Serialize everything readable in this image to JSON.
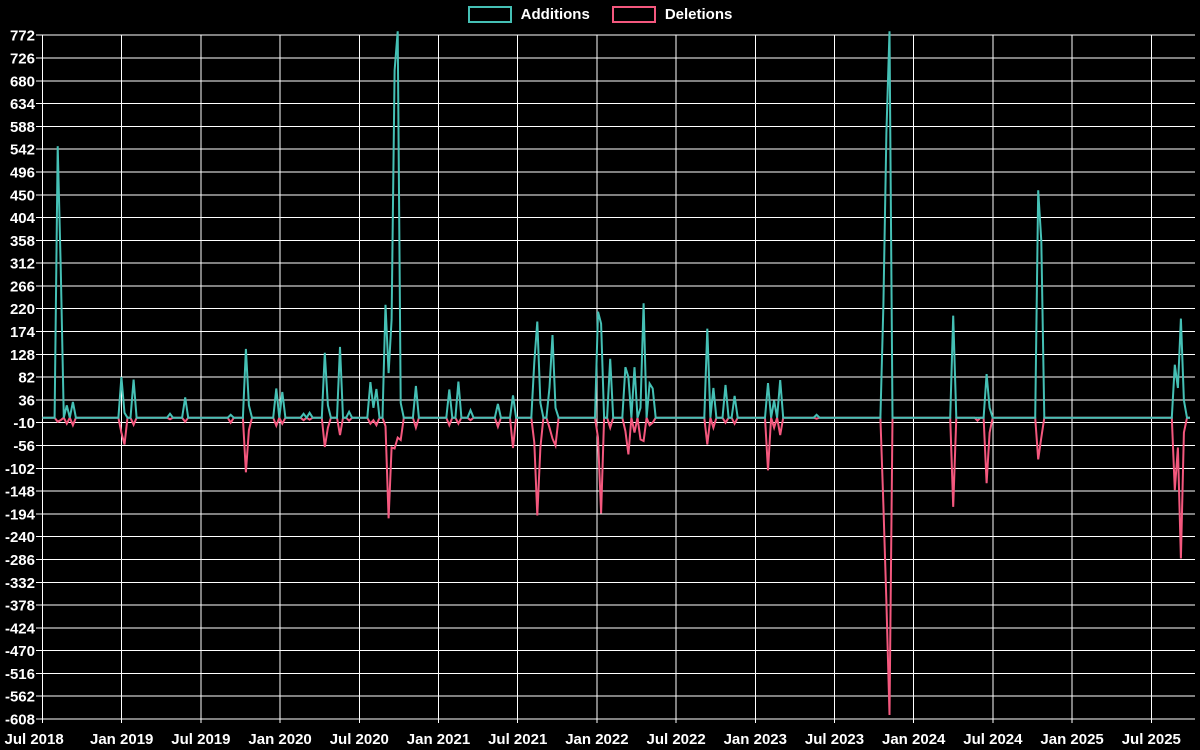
{
  "legend": {
    "items": [
      {
        "label": "Additions",
        "color": "#45c0b5"
      },
      {
        "label": "Deletions",
        "color": "#f4587e"
      }
    ]
  },
  "chart_data": {
    "type": "line",
    "title": "",
    "background_color": "#000000",
    "grid_color": "#ffffff",
    "text_color": "#ffffff",
    "grid": true,
    "legend_position": "top-center",
    "x_axis": {
      "tick_labels": [
        "Jul 2018",
        "Jan 2019",
        "Jul 2019",
        "Jan 2020",
        "Jul 2020",
        "Jan 2021",
        "Jul 2021",
        "Jan 2022",
        "Jul 2022",
        "Jan 2023",
        "Jul 2023",
        "Jan 2024",
        "Jul 2024",
        "Jan 2025",
        "Jul 2025"
      ],
      "unit": "weeks since Jul 2018",
      "total_weeks": 378
    },
    "y_axis": {
      "tick_values": [
        772,
        726,
        680,
        634,
        588,
        542,
        496,
        450,
        404,
        358,
        312,
        266,
        220,
        174,
        128,
        82,
        36,
        -10,
        -56,
        -102,
        -148,
        -194,
        -240,
        -286,
        -332,
        -378,
        -424,
        -470,
        -516,
        -562,
        -608
      ],
      "max": 772,
      "min": -608,
      "step": 46,
      "baseline": 0
    },
    "series_note": "points are [week_index, value]; weeks not listed have value 0; peaks of 780 are clipped at the chart top edge (>772)",
    "series": [
      {
        "name": "Additions",
        "color": "#45c0b5",
        "points": [
          [
            5,
            548
          ],
          [
            6,
            305
          ],
          [
            8,
            25
          ],
          [
            10,
            32
          ],
          [
            26,
            82
          ],
          [
            27,
            10
          ],
          [
            30,
            77
          ],
          [
            42,
            8
          ],
          [
            47,
            41
          ],
          [
            62,
            6
          ],
          [
            67,
            139
          ],
          [
            68,
            25
          ],
          [
            77,
            59
          ],
          [
            79,
            52
          ],
          [
            86,
            8
          ],
          [
            88,
            10
          ],
          [
            93,
            131
          ],
          [
            94,
            25
          ],
          [
            98,
            143
          ],
          [
            101,
            12
          ],
          [
            108,
            72
          ],
          [
            109,
            20
          ],
          [
            110,
            58
          ],
          [
            113,
            228
          ],
          [
            114,
            90
          ],
          [
            115,
            198
          ],
          [
            116,
            701
          ],
          [
            117,
            780
          ],
          [
            118,
            30
          ],
          [
            123,
            64
          ],
          [
            134,
            57
          ],
          [
            137,
            73
          ],
          [
            141,
            15
          ],
          [
            150,
            28
          ],
          [
            155,
            45
          ],
          [
            162,
            112
          ],
          [
            163,
            194
          ],
          [
            164,
            30
          ],
          [
            167,
            61
          ],
          [
            168,
            167
          ],
          [
            169,
            20
          ],
          [
            183,
            214
          ],
          [
            184,
            190
          ],
          [
            187,
            119
          ],
          [
            192,
            102
          ],
          [
            193,
            82
          ],
          [
            195,
            102
          ],
          [
            197,
            20
          ],
          [
            198,
            231
          ],
          [
            200,
            69
          ],
          [
            201,
            59
          ],
          [
            219,
            180
          ],
          [
            221,
            60
          ],
          [
            225,
            66
          ],
          [
            228,
            44
          ],
          [
            239,
            70
          ],
          [
            241,
            35
          ],
          [
            243,
            76
          ],
          [
            255,
            6
          ],
          [
            277,
            228
          ],
          [
            278,
            575
          ],
          [
            279,
            780
          ],
          [
            300,
            206
          ],
          [
            311,
            88
          ],
          [
            312,
            20
          ],
          [
            328,
            459
          ],
          [
            329,
            357
          ],
          [
            373,
            107
          ],
          [
            374,
            60
          ],
          [
            375,
            200
          ],
          [
            376,
            35
          ]
        ]
      },
      {
        "name": "Deletions",
        "color": "#f4587e",
        "points": [
          [
            5,
            -8
          ],
          [
            6,
            -5
          ],
          [
            8,
            -12
          ],
          [
            10,
            -15
          ],
          [
            26,
            -30
          ],
          [
            27,
            -54
          ],
          [
            30,
            -14
          ],
          [
            42,
            -3
          ],
          [
            47,
            -8
          ],
          [
            62,
            -10
          ],
          [
            67,
            -110
          ],
          [
            68,
            -25
          ],
          [
            77,
            -16
          ],
          [
            79,
            -12
          ],
          [
            86,
            -5
          ],
          [
            88,
            -4
          ],
          [
            93,
            -59
          ],
          [
            94,
            -20
          ],
          [
            98,
            -35
          ],
          [
            101,
            -6
          ],
          [
            108,
            -12
          ],
          [
            109,
            -5
          ],
          [
            110,
            -15
          ],
          [
            113,
            -17
          ],
          [
            114,
            -203
          ],
          [
            115,
            -60
          ],
          [
            116,
            -62
          ],
          [
            117,
            -40
          ],
          [
            118,
            -45
          ],
          [
            123,
            -20
          ],
          [
            134,
            -15
          ],
          [
            137,
            -12
          ],
          [
            141,
            -5
          ],
          [
            150,
            -18
          ],
          [
            155,
            -61
          ],
          [
            162,
            -50
          ],
          [
            163,
            -197
          ],
          [
            164,
            -60
          ],
          [
            167,
            -20
          ],
          [
            168,
            -42
          ],
          [
            169,
            -56
          ],
          [
            183,
            -40
          ],
          [
            184,
            -193
          ],
          [
            187,
            -20
          ],
          [
            192,
            -27
          ],
          [
            193,
            -74
          ],
          [
            195,
            -30
          ],
          [
            197,
            -44
          ],
          [
            198,
            -47
          ],
          [
            200,
            -15
          ],
          [
            201,
            -10
          ],
          [
            219,
            -54
          ],
          [
            221,
            -20
          ],
          [
            225,
            -10
          ],
          [
            228,
            -12
          ],
          [
            239,
            -106
          ],
          [
            241,
            -20
          ],
          [
            243,
            -35
          ],
          [
            255,
            -2
          ],
          [
            277,
            -177
          ],
          [
            278,
            -372
          ],
          [
            279,
            -600
          ],
          [
            300,
            -180
          ],
          [
            308,
            -6
          ],
          [
            311,
            -132
          ],
          [
            312,
            -30
          ],
          [
            328,
            -84
          ],
          [
            329,
            -40
          ],
          [
            373,
            -146
          ],
          [
            374,
            -60
          ],
          [
            375,
            -284
          ],
          [
            376,
            -30
          ]
        ]
      }
    ]
  }
}
